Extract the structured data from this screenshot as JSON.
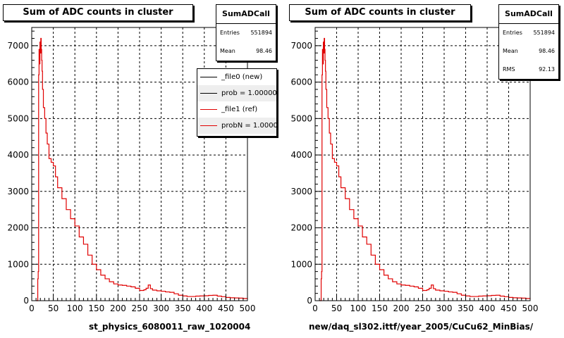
{
  "colors": {
    "new": "#000000",
    "ref": "#e00000",
    "grid": "#000000"
  },
  "left_pad": {
    "title": "Sum of ADC counts in cluster",
    "stats": {
      "name": "SumADCall",
      "rows": [
        {
          "label": "Entries",
          "value": "551894"
        },
        {
          "label": "Mean",
          "value": "98.46"
        }
      ]
    },
    "legend": [
      {
        "text": "_file0 (new)",
        "color": "#000000"
      },
      {
        "text": "prob = 1.000000",
        "color": "#000000"
      },
      {
        "text": "_file1 (ref)",
        "color": "#e00000"
      },
      {
        "text": "probN = 1.000000",
        "color": "#e00000"
      }
    ],
    "x_title": "st_physics_6080011_raw_1020004"
  },
  "right_pad": {
    "title": "Sum of ADC counts in cluster",
    "stats": {
      "name": "SumADCall",
      "rows": [
        {
          "label": "Entries",
          "value": "551894"
        },
        {
          "label": "Mean",
          "value": "98.46"
        },
        {
          "label": "RMS",
          "value": "92.13"
        }
      ]
    },
    "x_title": "new/daq_sl302.ittf/year_2005/CuCu62_MinBias/"
  },
  "chart_data": [
    {
      "type": "line",
      "title": "Sum of ADC counts in cluster",
      "xlabel": "st_physics_6080011_raw_1020004",
      "ylabel": "",
      "xlim": [
        0,
        500
      ],
      "ylim": [
        0,
        7500
      ],
      "xticks": [
        0,
        50,
        100,
        150,
        200,
        250,
        300,
        350,
        400,
        450,
        500
      ],
      "yticks": [
        0,
        1000,
        2000,
        3000,
        4000,
        5000,
        6000,
        7000
      ],
      "grid": true,
      "legend_position": "top-right",
      "series": [
        {
          "name": "_file1 (ref)",
          "x": [
            10,
            12,
            14,
            15,
            16,
            17,
            18,
            19,
            20,
            21,
            22,
            23,
            24,
            25,
            27,
            30,
            33,
            36,
            40,
            45,
            50,
            55,
            60,
            70,
            80,
            90,
            100,
            110,
            120,
            130,
            140,
            150,
            160,
            170,
            180,
            190,
            200,
            210,
            220,
            230,
            240,
            250,
            260,
            265,
            270,
            275,
            280,
            290,
            300,
            310,
            320,
            330,
            340,
            350,
            360,
            370,
            380,
            390,
            400,
            410,
            420,
            430,
            440,
            450,
            460,
            470,
            480,
            490,
            500
          ],
          "y": [
            0,
            0,
            600,
            800,
            6200,
            6900,
            6500,
            7100,
            6800,
            7200,
            6900,
            6600,
            6300,
            5800,
            5300,
            5000,
            4600,
            4300,
            3900,
            3800,
            3700,
            3400,
            3100,
            2800,
            2500,
            2250,
            2050,
            1750,
            1550,
            1250,
            1000,
            850,
            700,
            600,
            520,
            460,
            430,
            420,
            400,
            380,
            340,
            280,
            300,
            340,
            430,
            330,
            290,
            270,
            260,
            240,
            230,
            190,
            150,
            130,
            115,
            115,
            125,
            130,
            135,
            145,
            150,
            125,
            110,
            90,
            80,
            75,
            70,
            60,
            50
          ]
        }
      ]
    },
    {
      "type": "line",
      "title": "Sum of ADC counts in cluster",
      "xlabel": "new/daq_sl302.ittf/year_2005/CuCu62_MinBias/",
      "ylabel": "",
      "xlim": [
        0,
        500
      ],
      "ylim": [
        0,
        7500
      ],
      "xticks": [
        0,
        50,
        100,
        150,
        200,
        250,
        300,
        350,
        400,
        450,
        500
      ],
      "yticks": [
        0,
        1000,
        2000,
        3000,
        4000,
        5000,
        6000,
        7000
      ],
      "grid": true,
      "series": [
        {
          "name": "SumADCall",
          "x": [
            10,
            12,
            14,
            15,
            16,
            17,
            18,
            19,
            20,
            21,
            22,
            23,
            24,
            25,
            27,
            30,
            33,
            36,
            40,
            45,
            50,
            55,
            60,
            70,
            80,
            90,
            100,
            110,
            120,
            130,
            140,
            150,
            160,
            170,
            180,
            190,
            200,
            210,
            220,
            230,
            240,
            250,
            260,
            265,
            270,
            275,
            280,
            290,
            300,
            310,
            320,
            330,
            340,
            350,
            360,
            370,
            380,
            390,
            400,
            410,
            420,
            430,
            440,
            450,
            460,
            470,
            480,
            490,
            500
          ],
          "y": [
            0,
            0,
            600,
            800,
            6200,
            6900,
            6500,
            7100,
            6800,
            7200,
            6900,
            6600,
            6300,
            5800,
            5300,
            5000,
            4600,
            4300,
            3900,
            3800,
            3700,
            3400,
            3100,
            2800,
            2500,
            2250,
            2050,
            1750,
            1550,
            1250,
            1000,
            850,
            700,
            600,
            520,
            460,
            430,
            420,
            400,
            380,
            340,
            280,
            300,
            340,
            430,
            330,
            290,
            270,
            260,
            240,
            230,
            190,
            150,
            130,
            115,
            115,
            125,
            130,
            135,
            145,
            150,
            125,
            110,
            90,
            80,
            75,
            70,
            60,
            50
          ]
        }
      ]
    }
  ]
}
